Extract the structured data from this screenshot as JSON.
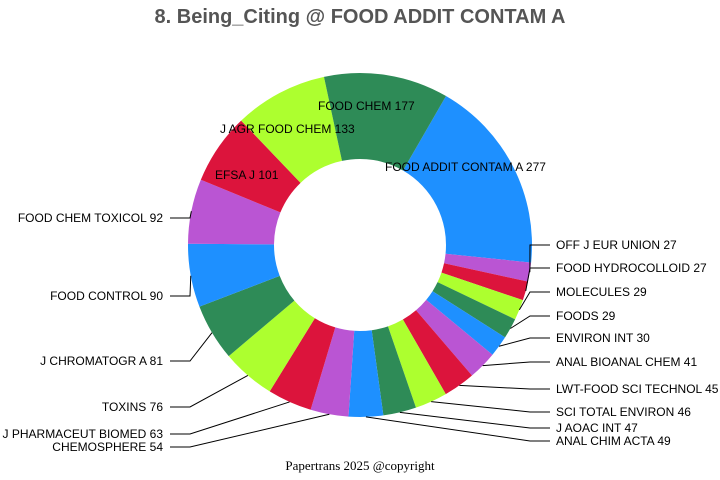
{
  "chart_data": {
    "type": "pie",
    "title": "8. Being_Citing @ FOOD ADDIT CONTAM A",
    "donut": true,
    "slices": [
      {
        "label": "FOOD ADDIT CONTAM A",
        "value": 277,
        "color": "#1e90ff"
      },
      {
        "label": "OFF J EUR UNION",
        "value": 27,
        "color": "#ba55d3"
      },
      {
        "label": "FOOD HYDROCOLLOID",
        "value": 27,
        "color": "#dc143c"
      },
      {
        "label": "MOLECULES",
        "value": 29,
        "color": "#adff2f"
      },
      {
        "label": "FOODS",
        "value": 29,
        "color": "#2e8b57"
      },
      {
        "label": "ENVIRON INT",
        "value": 30,
        "color": "#1e90ff"
      },
      {
        "label": "ANAL BIOANAL CHEM",
        "value": 41,
        "color": "#ba55d3"
      },
      {
        "label": "LWT-FOOD SCI TECHNOL",
        "value": 45,
        "color": "#dc143c"
      },
      {
        "label": "SCI TOTAL ENVIRON",
        "value": 46,
        "color": "#adff2f"
      },
      {
        "label": "J AOAC INT",
        "value": 47,
        "color": "#2e8b57"
      },
      {
        "label": "ANAL CHIM ACTA",
        "value": 49,
        "color": "#1e90ff"
      },
      {
        "label": "CHEMOSPHERE",
        "value": 54,
        "color": "#ba55d3"
      },
      {
        "label": "J PHARMACEUT BIOMED",
        "value": 63,
        "color": "#dc143c"
      },
      {
        "label": "TOXINS",
        "value": 76,
        "color": "#adff2f"
      },
      {
        "label": "J CHROMATOGR A",
        "value": 81,
        "color": "#2e8b57"
      },
      {
        "label": "FOOD CONTROL",
        "value": 90,
        "color": "#1e90ff"
      },
      {
        "label": "FOOD CHEM TOXICOL",
        "value": 92,
        "color": "#ba55d3"
      },
      {
        "label": "EFSA J",
        "value": 101,
        "color": "#dc143c"
      },
      {
        "label": "J AGR FOOD CHEM",
        "value": 133,
        "color": "#adff2f"
      },
      {
        "label": "FOOD CHEM",
        "value": 177,
        "color": "#2e8b57"
      }
    ]
  },
  "footer": "Papertrans 2025 @copyright"
}
